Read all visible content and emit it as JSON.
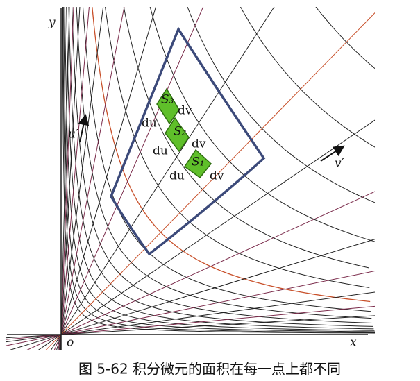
{
  "axes": {
    "x": "x",
    "y": "y",
    "origin": "o"
  },
  "curve_labels": {
    "u": "u′",
    "v": "v′"
  },
  "elements": [
    {
      "label": "S₁",
      "du": "du",
      "dv": "dv"
    },
    {
      "label": "S₂",
      "du": "du",
      "dv": "dv"
    },
    {
      "label": "S₃",
      "du": "du",
      "dv": "dv"
    }
  ],
  "caption": "图 5-62 积分微元的面积在每一点上都不同"
}
